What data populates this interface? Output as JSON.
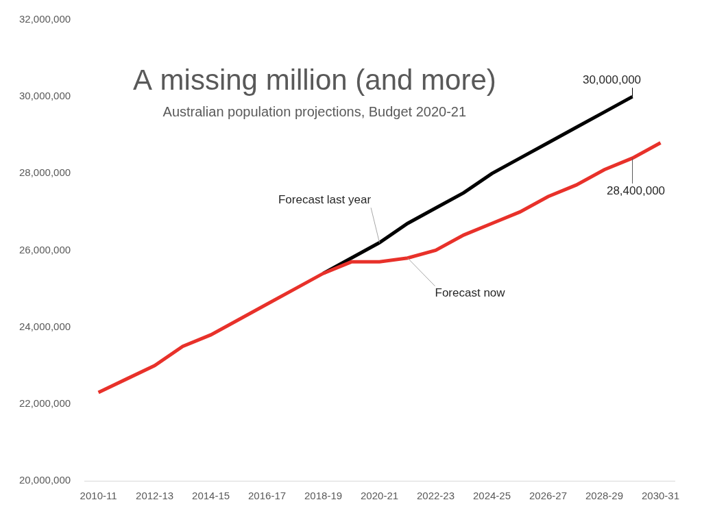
{
  "chart_data": {
    "type": "line",
    "title": "A missing million (and more)",
    "subtitle": "Australian population projections, Budget 2020-21",
    "categories": [
      "2010-11",
      null,
      "2012-13",
      null,
      "2014-15",
      null,
      "2016-17",
      null,
      "2018-19",
      null,
      "2020-21",
      null,
      "2022-23",
      null,
      "2024-25",
      null,
      "2026-27",
      null,
      "2028-29",
      null,
      "2030-31"
    ],
    "series": [
      {
        "name": "Forecast now",
        "color": "#e8312a",
        "values": [
          22300000,
          22650000,
          23000000,
          23500000,
          23800000,
          24200000,
          24600000,
          25000000,
          25400000,
          25700000,
          25700000,
          25800000,
          26000000,
          26400000,
          26700000,
          27000000,
          27400000,
          27700000,
          28100000,
          28400000,
          28800000
        ]
      },
      {
        "name": "Forecast last year",
        "color": "#000000",
        "values": [
          null,
          null,
          null,
          null,
          null,
          null,
          null,
          null,
          25400000,
          25800000,
          26200000,
          26700000,
          27100000,
          27500000,
          28000000,
          28400000,
          28800000,
          29200000,
          29600000,
          30000000,
          null
        ]
      }
    ],
    "ylim": [
      20000000,
      32000000
    ],
    "yticks": [
      {
        "value": 20000000,
        "label": "20,000,000"
      },
      {
        "value": 22000000,
        "label": "22,000,000"
      },
      {
        "value": 24000000,
        "label": "24,000,000"
      },
      {
        "value": 26000000,
        "label": "26,000,000"
      },
      {
        "value": 28000000,
        "label": "28,000,000"
      },
      {
        "value": 30000000,
        "label": "30,000,000"
      },
      {
        "value": 32000000,
        "label": "32,000,000"
      }
    ],
    "grid": false,
    "annotations": [
      {
        "text": "Forecast last year",
        "series": "Forecast last year",
        "value": 26200000
      },
      {
        "text": "Forecast now",
        "series": "Forecast now",
        "value": 25800000
      },
      {
        "text": "30,000,000",
        "series": "Forecast last year",
        "value": 30000000
      },
      {
        "text": "28,400,000",
        "series": "Forecast now",
        "value": 28400000
      }
    ]
  }
}
